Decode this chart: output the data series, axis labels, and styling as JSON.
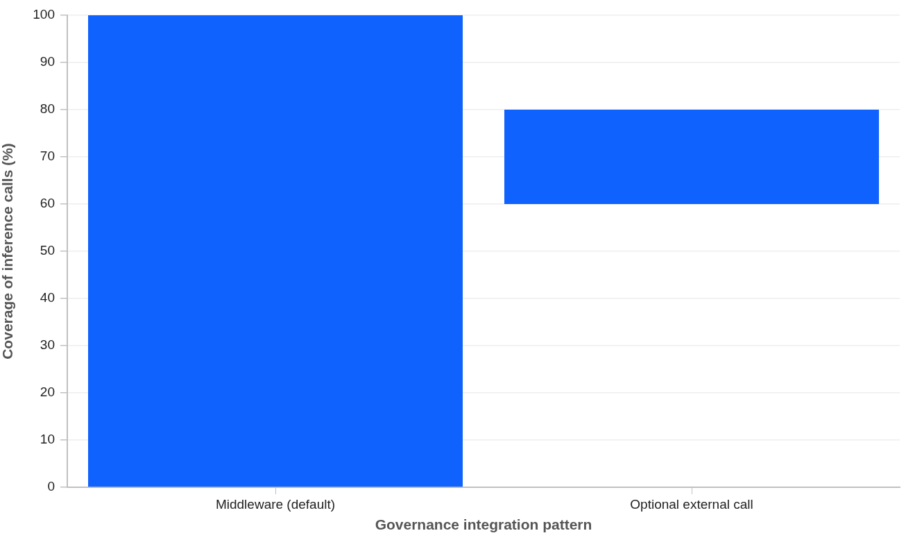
{
  "chart_data": {
    "type": "bar",
    "xlabel": "Governance integration pattern",
    "ylabel": "Coverage of inference calls (%)",
    "categories": [
      "Middleware (default)",
      "Optional external call"
    ],
    "values": [
      100,
      20
    ],
    "base": [
      0,
      60
    ],
    "color": "#1062fe",
    "ylim": [
      0,
      100
    ],
    "yticks": [
      0,
      10,
      20,
      30,
      40,
      50,
      60,
      70,
      80,
      90,
      100
    ],
    "grid": "y"
  }
}
